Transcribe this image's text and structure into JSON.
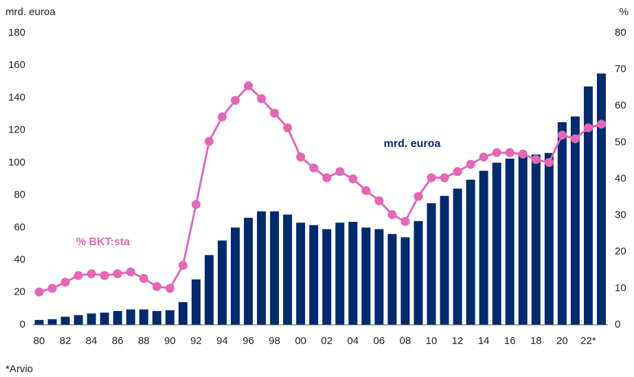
{
  "chart_data": {
    "type": "bar_line",
    "y_label": "mrd. euroa",
    "y2_label": "%",
    "footnote": "*Arvio",
    "categories": [
      "80",
      null,
      "82",
      null,
      "84",
      null,
      "86",
      null,
      "88",
      null,
      "90",
      null,
      "92",
      null,
      "94",
      null,
      "96",
      null,
      "98",
      null,
      "00",
      null,
      "02",
      null,
      "04",
      null,
      "06",
      null,
      "08",
      null,
      "10",
      null,
      "12",
      null,
      "14",
      null,
      "16",
      null,
      "18",
      null,
      "20",
      null,
      "22*",
      null
    ],
    "series": [
      {
        "name": "mrd. euroa",
        "type": "bar",
        "color": "#002b6e",
        "values": [
          3,
          3.5,
          5,
          6,
          7,
          7.5,
          8.5,
          9.5,
          9.5,
          8.5,
          9,
          14,
          28,
          43,
          52,
          60,
          66,
          70,
          70,
          68,
          63,
          61.5,
          59,
          63,
          63.5,
          60,
          59,
          56,
          54,
          64,
          75,
          79.5,
          84,
          89.5,
          95,
          100,
          102.5,
          105,
          105,
          106,
          125,
          128.5,
          147,
          155
        ]
      },
      {
        "name": "% BKT:sta",
        "type": "line",
        "axis": "y2",
        "color": "#e466b5",
        "values": [
          9,
          10,
          11.7,
          13.5,
          14,
          13.5,
          14,
          14.5,
          12.7,
          10.5,
          10,
          16.3,
          33,
          50.3,
          57,
          61.5,
          65.5,
          62,
          58,
          54,
          46,
          43,
          40.3,
          42,
          40,
          36.8,
          34,
          30.2,
          28.3,
          35.2,
          40.3,
          40.3,
          42,
          44,
          46,
          47.2,
          47.2,
          46.8,
          45.3,
          44.5,
          52,
          51,
          54,
          55
        ]
      }
    ],
    "ylim": [
      0,
      180
    ],
    "yticks": [
      0,
      20,
      40,
      60,
      80,
      100,
      120,
      140,
      160,
      180
    ],
    "y2lim": [
      0,
      80
    ],
    "y2ticks": [
      0,
      10,
      20,
      30,
      40,
      50,
      60,
      70,
      80
    ]
  }
}
